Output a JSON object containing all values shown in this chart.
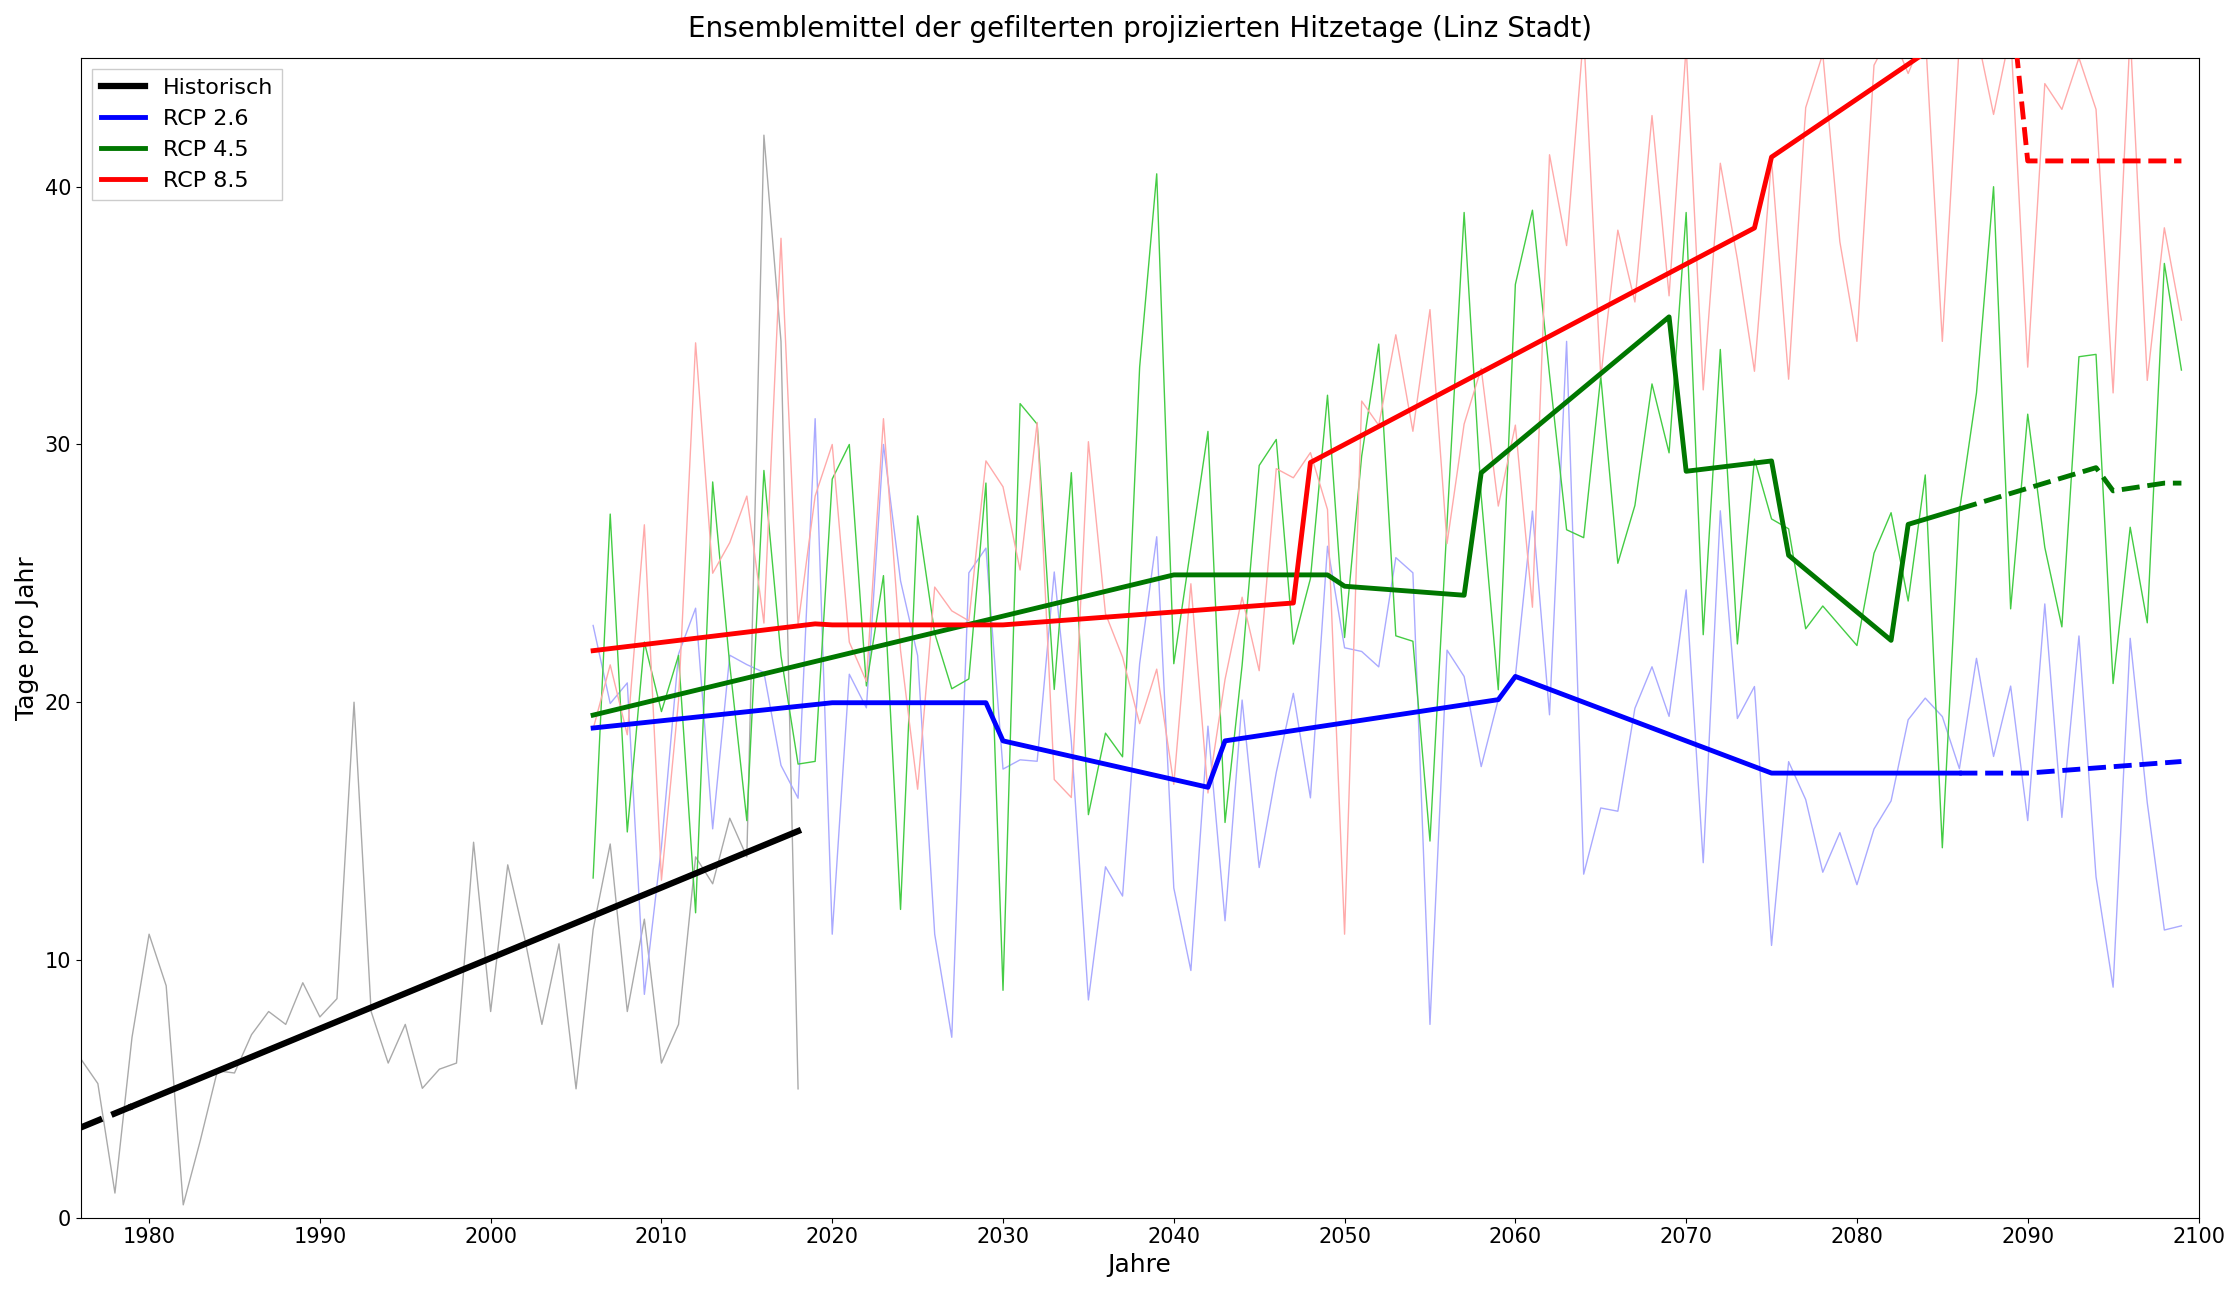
{
  "title": "Ensemblemittel der gefilterten projizierten Hitzetage (Linz Stadt)",
  "xlabel": "Jahre",
  "ylabel": "Tage pro Jahr",
  "xlim": [
    1976,
    2100
  ],
  "ylim": [
    0,
    45
  ],
  "yticks": [
    0,
    10,
    20,
    30,
    40
  ],
  "xticks": [
    1980,
    1990,
    2000,
    2010,
    2020,
    2030,
    2040,
    2050,
    2060,
    2070,
    2080,
    2090,
    2100
  ],
  "legend_labels": [
    "Historisch",
    "RCP 2.6",
    "RCP 4.5",
    "RCP 8.5"
  ],
  "colors": {
    "historical_smooth": "#000000",
    "historical_raw": "#aaaaaa",
    "rcp26_smooth": "#0000FF",
    "rcp26_raw": "#aaaaff",
    "rcp45_smooth": "#007700",
    "rcp45_raw": "#44cc44",
    "rcp85_smooth": "#FF0000",
    "rcp85_raw": "#ffaaaa"
  },
  "historical_start_year": 1976,
  "historical_end_year": 2018,
  "projection_start_year": 2006,
  "projection_end_year": 2099,
  "dashed_start_year": 2086,
  "seed": 42,
  "figsize": [
    22.4,
    12.92
  ],
  "dpi": 100,
  "title_fontsize": 20,
  "label_fontsize": 18,
  "tick_fontsize": 15,
  "legend_fontsize": 16,
  "smooth_linewidth": 3.5,
  "raw_linewidth": 1.0
}
